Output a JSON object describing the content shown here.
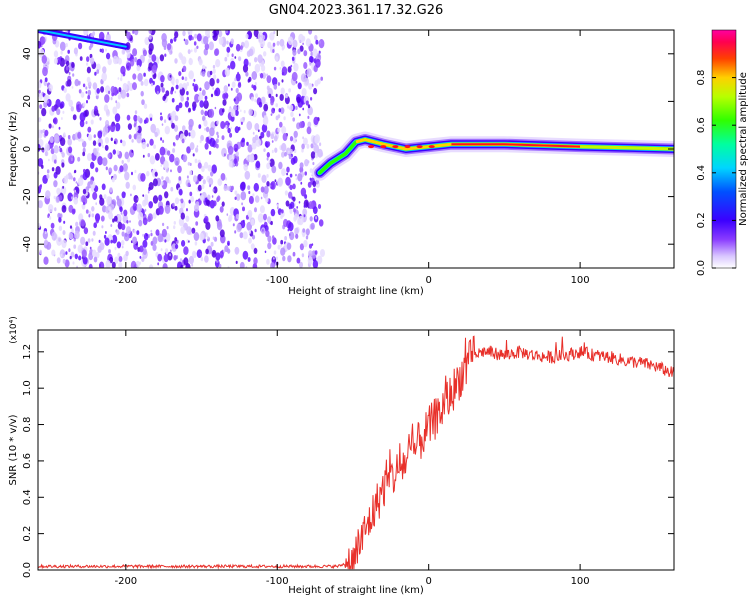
{
  "title": "GN04.2023.361.17.32.G26",
  "colors": {
    "snr_line": "#e8302a",
    "axis": "#000000",
    "background": "#ffffff"
  },
  "chart_data": [
    {
      "type": "heatmap",
      "xlabel": "Height of straight line (km)",
      "ylabel": "Frequency (Hz)",
      "xlim": [
        -258,
        162
      ],
      "ylim": [
        -50,
        50
      ],
      "xticks": [
        -200,
        -100,
        0,
        100
      ],
      "xtick_labels": [
        "-200",
        "-100",
        "0",
        "100"
      ],
      "yticks": [
        -40,
        -20,
        0,
        20,
        40
      ],
      "ytick_labels": [
        "-40",
        "-20",
        "0",
        "20",
        "40"
      ],
      "noise_region_x": [
        -258,
        -70
      ],
      "signal_track": [
        {
          "x": -72,
          "f": -10
        },
        {
          "x": -65,
          "f": -6
        },
        {
          "x": -55,
          "f": -2
        },
        {
          "x": -48,
          "f": 3
        },
        {
          "x": -42,
          "f": 4
        },
        {
          "x": -30,
          "f": 2
        },
        {
          "x": -15,
          "f": 0
        },
        {
          "x": 0,
          "f": 1
        },
        {
          "x": 15,
          "f": 2
        },
        {
          "x": 50,
          "f": 2
        },
        {
          "x": 100,
          "f": 1
        },
        {
          "x": 162,
          "f": 0
        }
      ],
      "early_streak": [
        {
          "x": -258,
          "f": 50
        },
        {
          "x": -200,
          "f": 43
        }
      ],
      "colorbar": {
        "label": "Normalized spectral amplitude",
        "range": [
          0,
          1
        ],
        "ticks": [
          0.0,
          0.2,
          0.4,
          0.6,
          0.8
        ],
        "tick_labels": [
          "0.0",
          "0.2",
          "0.4",
          "0.6",
          "0.8"
        ],
        "colormap": "rainbow-white"
      }
    },
    {
      "type": "line",
      "xlabel": "Height of straight line (km)",
      "ylabel": "SNR (10 * v/v)",
      "multiplier_label": "(x10⁴)",
      "xlim": [
        -258,
        162
      ],
      "ylim": [
        0,
        1.32
      ],
      "xticks": [
        -200,
        -100,
        0,
        100
      ],
      "xtick_labels": [
        "-200",
        "-100",
        "0",
        "100"
      ],
      "yticks": [
        0.0,
        0.2,
        0.4,
        0.6,
        0.8,
        1.0,
        1.2
      ],
      "ytick_labels": [
        "0.0",
        "0.2",
        "0.4",
        "0.6",
        "0.8",
        "1.0",
        "1.2"
      ],
      "series": [
        {
          "color": "#e8302a",
          "x": [
            -258,
            -200,
            -150,
            -100,
            -60,
            -50,
            -45,
            -40,
            -35,
            -30,
            -25,
            -20,
            -15,
            -10,
            -5,
            0,
            5,
            10,
            15,
            20,
            25,
            30,
            35,
            40,
            50,
            60,
            70,
            80,
            90,
            100,
            110,
            120,
            130,
            140,
            150,
            162
          ],
          "y": [
            0.02,
            0.02,
            0.02,
            0.02,
            0.02,
            0.05,
            0.15,
            0.25,
            0.35,
            0.45,
            0.5,
            0.55,
            0.6,
            0.65,
            0.72,
            0.78,
            0.84,
            0.9,
            0.97,
            1.05,
            1.12,
            1.18,
            1.2,
            1.2,
            1.18,
            1.2,
            1.18,
            1.17,
            1.18,
            1.2,
            1.18,
            1.17,
            1.15,
            1.14,
            1.12,
            1.08
          ]
        }
      ]
    }
  ]
}
